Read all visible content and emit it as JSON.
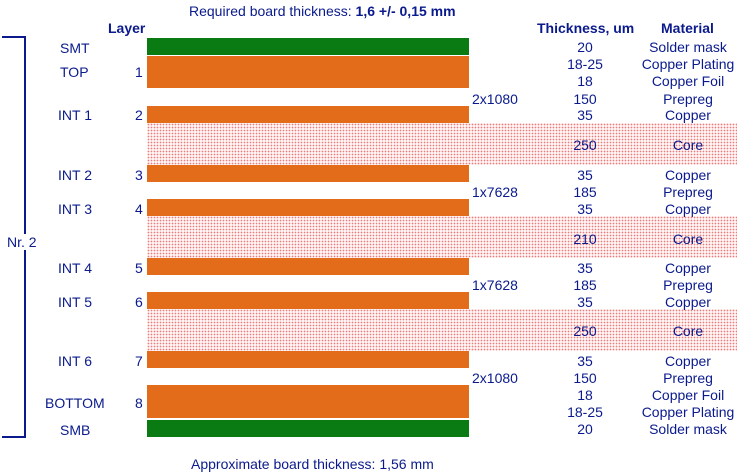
{
  "header": {
    "required_label": "Required board thickness: ",
    "required_value": "1,6 +/- 0,15 mm"
  },
  "columns": {
    "layer": "Layer",
    "thickness": "Thickness, um",
    "material": "Material"
  },
  "stack_group": "Nr. 2",
  "layer_names": {
    "smt": "SMT",
    "top": "TOP",
    "int1": "INT 1",
    "int2": "INT 2",
    "int3": "INT 3",
    "int4": "INT 4",
    "int5": "INT 5",
    "int6": "INT 6",
    "bottom": "BOTTOM",
    "smb": "SMB"
  },
  "layer_numbers": {
    "top": "1",
    "int1": "2",
    "int2": "3",
    "int3": "4",
    "int4": "5",
    "int5": "6",
    "int6": "7",
    "bottom": "8"
  },
  "prepreg_types": {
    "p1": "2x1080",
    "p2": "1x7628",
    "p3": "1x7628",
    "p4": "2x1080"
  },
  "rows": [
    {
      "thickness": "20",
      "material": "Solder mask"
    },
    {
      "thickness": "18-25",
      "material": "Copper Plating"
    },
    {
      "thickness": "18",
      "material": "Copper Foil"
    },
    {
      "thickness": "150",
      "material": "Prepreg"
    },
    {
      "thickness": "35",
      "material": "Copper"
    },
    {
      "thickness": "250",
      "material": "Core"
    },
    {
      "thickness": "35",
      "material": "Copper"
    },
    {
      "thickness": "185",
      "material": "Prepreg"
    },
    {
      "thickness": "35",
      "material": "Copper"
    },
    {
      "thickness": "210",
      "material": "Core"
    },
    {
      "thickness": "35",
      "material": "Copper"
    },
    {
      "thickness": "185",
      "material": "Prepreg"
    },
    {
      "thickness": "35",
      "material": "Copper"
    },
    {
      "thickness": "250",
      "material": "Core"
    },
    {
      "thickness": "35",
      "material": "Copper"
    },
    {
      "thickness": "150",
      "material": "Prepreg"
    },
    {
      "thickness": "18",
      "material": "Copper Foil"
    },
    {
      "thickness": "18-25",
      "material": "Copper Plating"
    },
    {
      "thickness": "20",
      "material": "Solder mask"
    }
  ],
  "footer": {
    "approx": "Approximate board thickness: 1,56 mm"
  },
  "colors": {
    "copper": "#e36c1a",
    "solder_mask": "#0a7a12",
    "core": "#f07a7a",
    "text": "#0a1a8c"
  }
}
